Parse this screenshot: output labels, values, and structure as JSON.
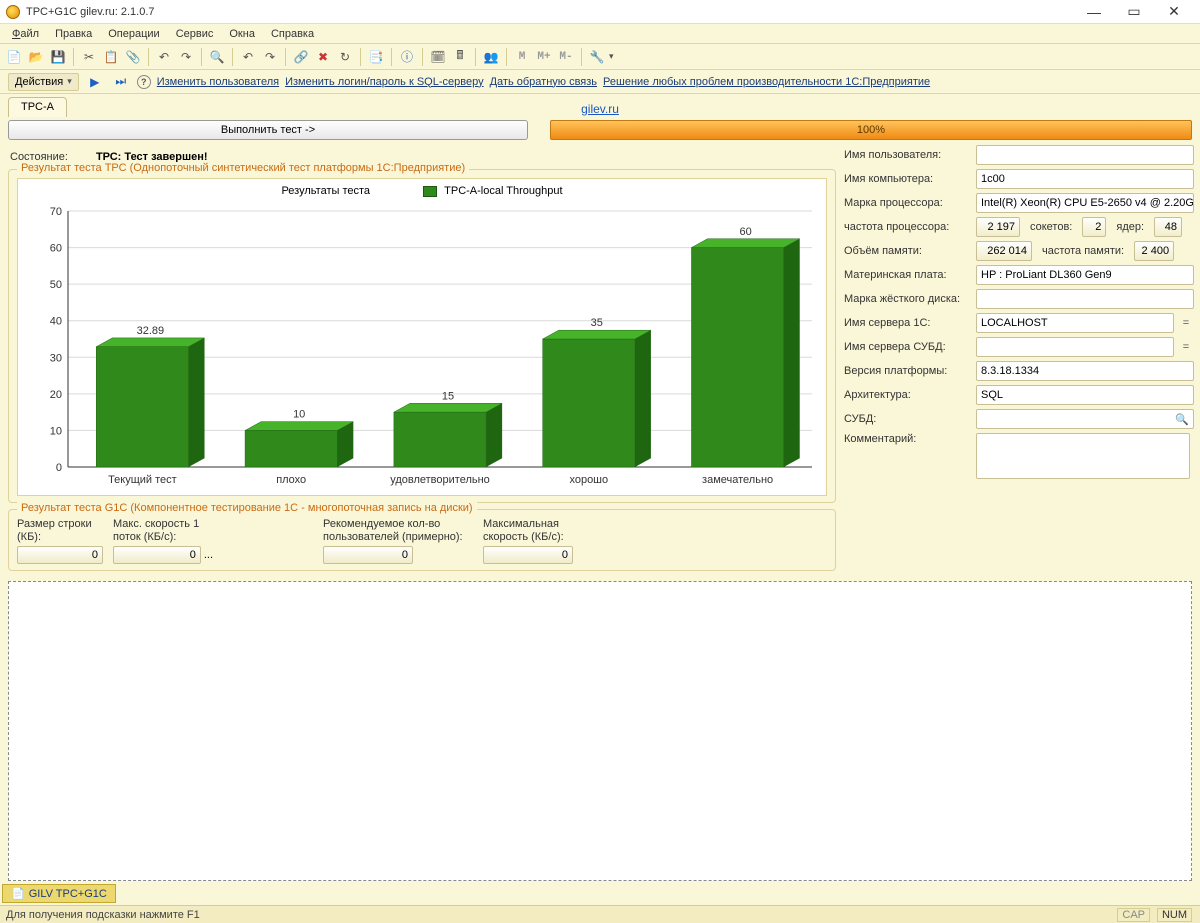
{
  "titlebar": {
    "title": "TPC+G1C gilev.ru: 2.1.0.7"
  },
  "menubar": {
    "file": "Файл",
    "edit": "Правка",
    "ops": "Операции",
    "service": "Сервис",
    "windows": "Окна",
    "help": "Справка"
  },
  "toolbar1_letters": {
    "m1": "M",
    "m2": "M+",
    "m3": "M-"
  },
  "toolbar2": {
    "actions": "Действия",
    "change_user": "Изменить пользователя",
    "change_login": "Изменить логин/пароль к SQL-серверу",
    "feedback": "Дать обратную связь",
    "solve": "Решение любых проблем производительности 1С:Предприятие"
  },
  "tabs": {
    "tpc_a": "TPC-A",
    "site_link": "gilev.ru"
  },
  "run_button": "Выполнить тест ->",
  "progress_text": "100%",
  "status": {
    "label": "Состояние:",
    "value": "ТРС: Тест завершен!"
  },
  "tpc_group_title": "Результат теста ТРС (Однопоточный синтетический тест платформы 1С:Предприятие)",
  "chart": {
    "subtitle": "Результаты теста",
    "legend": "TPC-A-local Throughput",
    "categories": [
      "Текущий тест",
      "плохо",
      "удовлетворительно",
      "хорошо",
      "замечательно"
    ],
    "values": [
      32.89,
      10,
      15,
      35,
      60
    ],
    "ylim_max": 70,
    "ytick_step": 10,
    "y_ticks": [
      0,
      10,
      20,
      30,
      40,
      50,
      60,
      70
    ],
    "bar_fill": "#2f8a1b",
    "bar_side": "#1f6611",
    "bar_top": "#46b32a",
    "grid_color": "#d9d9d9",
    "axis_color": "#333333",
    "background": "#ffffff",
    "font_size_labels": 11
  },
  "g1c": {
    "title": "Результат теста G1C (Компонентное тестирование 1С - многопоточная запись на диски)",
    "col1": {
      "label": "Размер строки (КБ):",
      "value": "0"
    },
    "col2": {
      "label": "Макс. скорость 1 поток (КБ/с):",
      "value": "0"
    },
    "ellipsis": "...",
    "col3": {
      "label": "Рекомендуемое кол-во пользователей (примерно):",
      "value": "0"
    },
    "col4": {
      "label": "Максимальная скорость (КБ/с):",
      "value": "0"
    }
  },
  "info": {
    "username_label": "Имя пользователя:",
    "username": "",
    "computer_label": "Имя компьютера:",
    "computer": "1c00",
    "cpu_label": "Марка процессора:",
    "cpu": "Intel(R) Xeon(R) CPU E5-2650 v4 @ 2.20GHz",
    "freq_label": "частота процессора:",
    "freq": "2 197",
    "sockets_label": "сокетов:",
    "sockets": "2",
    "cores_label": "ядер:",
    "cores": "48",
    "mem_label": "Объём памяти:",
    "mem": "262 014",
    "memfreq_label": "частота памяти:",
    "memfreq": "2 400",
    "mobo_label": "Материнская плата:",
    "mobo": "HP : ProLiant DL360 Gen9",
    "hdd_label": "Марка жёсткого диска:",
    "hdd": "",
    "srv1c_label": "Имя сервера 1С:",
    "srv1c": "LOCALHOST",
    "eq1": "=",
    "srvdb_label": "Имя сервера СУБД:",
    "srvdb": "",
    "eq2": "=",
    "platform_label": "Версия платформы:",
    "platform": "8.3.18.1334",
    "arch_label": "Архитектура:",
    "arch": "SQL",
    "subd_label": "СУБД:",
    "subd": "",
    "mag": "🔍",
    "comment_label": "Комментарий:"
  },
  "taskbar_tab": "GILV TPC+G1C",
  "statusbar": {
    "hint": "Для получения подсказки нажмите F1",
    "cap": "CAP",
    "num": "NUM"
  }
}
